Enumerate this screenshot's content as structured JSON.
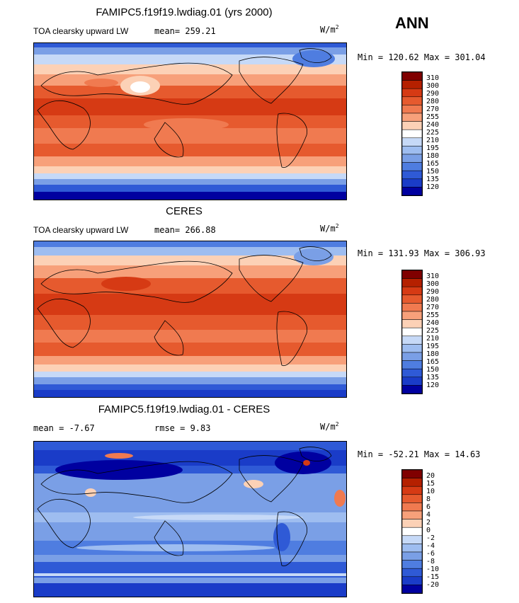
{
  "season": "ANN",
  "panels": [
    {
      "title": "FAMIPC5.f19f19.lwdiag.01 (yrs 2000)",
      "left_label": "TOA clearsky upward LW",
      "stat_text": "mean= 259.21",
      "units_base": "W/m",
      "units_exp": "2",
      "minmax": "Min = 120.62 Max = 301.04",
      "colorbar": {
        "levels": [
          "310",
          "300",
          "290",
          "280",
          "270",
          "255",
          "240",
          "225",
          "210",
          "195",
          "180",
          "165",
          "150",
          "135",
          "120"
        ],
        "colors": [
          "#800000",
          "#b52000",
          "#d63a14",
          "#e65a2e",
          "#f07a50",
          "#f7a07a",
          "#fcd1b6",
          "#ffffff",
          "#c6d9f7",
          "#9ebdf0",
          "#7a9fe6",
          "#4f7de0",
          "#2f5ad6",
          "#1a3cc8",
          "#0000a0"
        ]
      }
    },
    {
      "title": "CERES",
      "left_label": "TOA clearsky upward LW",
      "stat_text": "mean= 266.88",
      "units_base": "W/m",
      "units_exp": "2",
      "minmax": "Min = 131.93 Max = 306.93",
      "colorbar": {
        "levels": [
          "310",
          "300",
          "290",
          "280",
          "270",
          "255",
          "240",
          "225",
          "210",
          "195",
          "180",
          "165",
          "150",
          "135",
          "120"
        ],
        "colors": [
          "#800000",
          "#b52000",
          "#d63a14",
          "#e65a2e",
          "#f07a50",
          "#f7a07a",
          "#fcd1b6",
          "#ffffff",
          "#c6d9f7",
          "#9ebdf0",
          "#7a9fe6",
          "#4f7de0",
          "#2f5ad6",
          "#1a3cc8",
          "#0000a0"
        ]
      }
    },
    {
      "title": "FAMIPC5.f19f19.lwdiag.01 - CERES",
      "mean_text": "mean =   -7.67",
      "rmse_text": "rmse =    9.83",
      "units_base": "W/m",
      "units_exp": "2",
      "minmax": "Min = -52.21 Max =  14.63",
      "colorbar": {
        "levels": [
          "20",
          "15",
          "10",
          "8",
          "6",
          "4",
          "2",
          "0",
          "-2",
          "-4",
          "-6",
          "-8",
          "-10",
          "-15",
          "-20"
        ],
        "colors": [
          "#800000",
          "#b52000",
          "#d63a14",
          "#e65a2e",
          "#f07a50",
          "#f7a07a",
          "#fcd1b6",
          "#ffffff",
          "#c6d9f7",
          "#9ebdf0",
          "#7a9fe6",
          "#4f7de0",
          "#2f5ad6",
          "#1a3cc8",
          "#0000a0"
        ]
      }
    }
  ],
  "chart_data": [
    {
      "type": "heatmap",
      "title": "FAMIPC5.f19f19.lwdiag.01 (yrs 2000)",
      "variable": "TOA clearsky upward LW",
      "units": "W/m2",
      "mean": 259.21,
      "min": 120.62,
      "max": 301.04,
      "contour_levels": [
        120,
        135,
        150,
        165,
        180,
        195,
        210,
        225,
        240,
        255,
        270,
        280,
        290,
        300,
        310
      ]
    },
    {
      "type": "heatmap",
      "title": "CERES",
      "variable": "TOA clearsky upward LW",
      "units": "W/m2",
      "mean": 266.88,
      "min": 131.93,
      "max": 306.93,
      "contour_levels": [
        120,
        135,
        150,
        165,
        180,
        195,
        210,
        225,
        240,
        255,
        270,
        280,
        290,
        300,
        310
      ]
    },
    {
      "type": "heatmap",
      "title": "FAMIPC5.f19f19.lwdiag.01 - CERES",
      "units": "W/m2",
      "mean": -7.67,
      "rmse": 9.83,
      "min": -52.21,
      "max": 14.63,
      "contour_levels": [
        -20,
        -15,
        -10,
        -8,
        -6,
        -4,
        -2,
        0,
        2,
        4,
        6,
        8,
        10,
        15,
        20
      ]
    }
  ]
}
